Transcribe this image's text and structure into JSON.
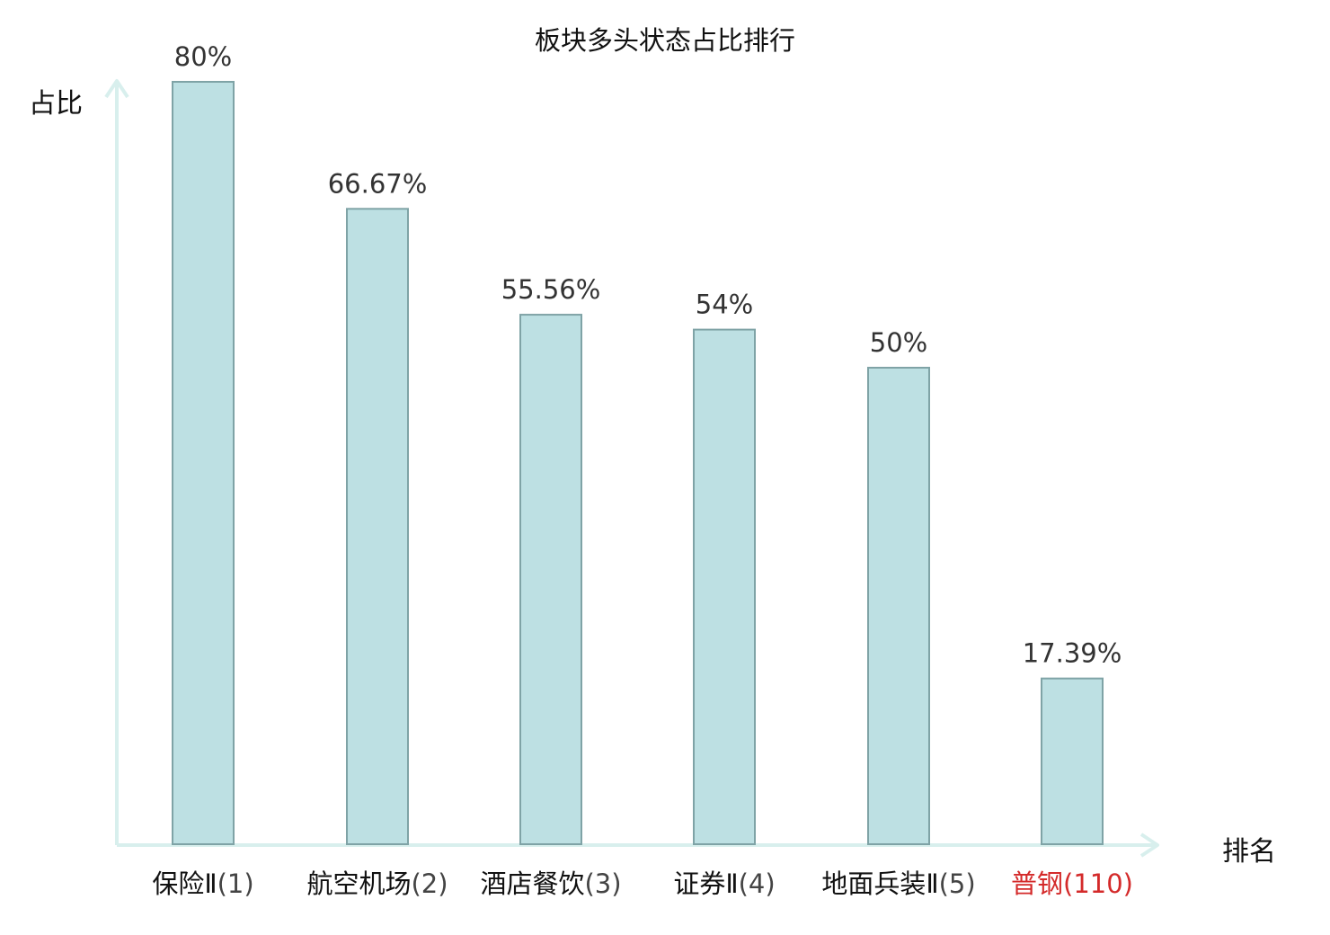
{
  "chart_data": {
    "type": "bar",
    "title": "板块多头状态占比排行",
    "ylabel": "占比",
    "xlabel": "排名",
    "categories": [
      "保险Ⅱ(1)",
      "航空机场(2)",
      "酒店餐饮(3)",
      "证券Ⅱ(4)",
      "地面兵装Ⅱ(5)",
      "普钢(110)"
    ],
    "category_names": [
      "保险Ⅱ",
      "航空机场",
      "酒店餐饮",
      "证券Ⅱ",
      "地面兵装Ⅱ",
      "普钢"
    ],
    "category_ranks": [
      "(1)",
      "(2)",
      "(3)",
      "(4)",
      "(5)",
      "(110)"
    ],
    "values": [
      80,
      66.67,
      55.56,
      54,
      50,
      17.39
    ],
    "value_labels": [
      "80%",
      "66.67%",
      "55.56%",
      "54%",
      "50%",
      "17.39%"
    ],
    "highlight_index": 5,
    "ylim": [
      0,
      80
    ],
    "grid": false,
    "colors": {
      "bar_fill": "#bde0e3",
      "bar_stroke": "#7fa3a6",
      "axis": "#d8efed",
      "value_text": "#333333",
      "highlight_text": "#d42a2a"
    }
  }
}
